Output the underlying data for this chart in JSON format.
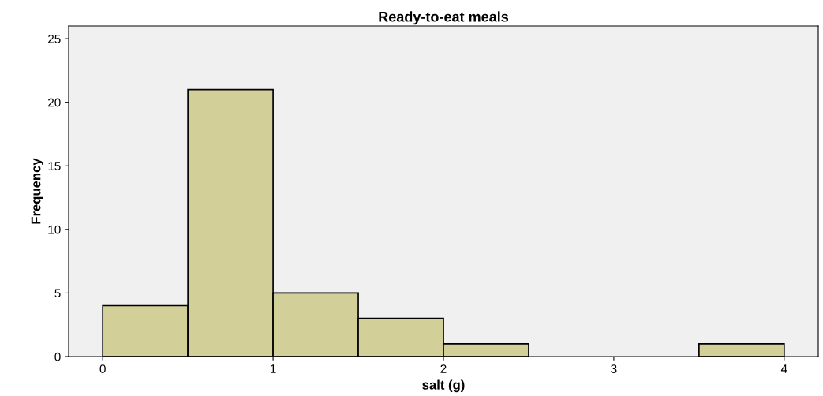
{
  "chart_data": {
    "type": "histogram",
    "title": "Ready-to-eat meals",
    "xlabel": "salt (g)",
    "ylabel": "Frequency",
    "bins": [
      0,
      0.5,
      1,
      1.5,
      2,
      2.5,
      3,
      3.5,
      4
    ],
    "values": [
      4,
      21,
      5,
      3,
      1,
      0,
      0,
      1
    ],
    "color": "#d3cf98",
    "xlim": [
      -0.2,
      4.2
    ],
    "xticks": [
      0,
      1,
      2,
      3,
      4
    ],
    "ylim": [
      0,
      26
    ],
    "yticks": [
      0,
      5,
      10,
      15,
      20,
      25
    ],
    "grid": false
  }
}
